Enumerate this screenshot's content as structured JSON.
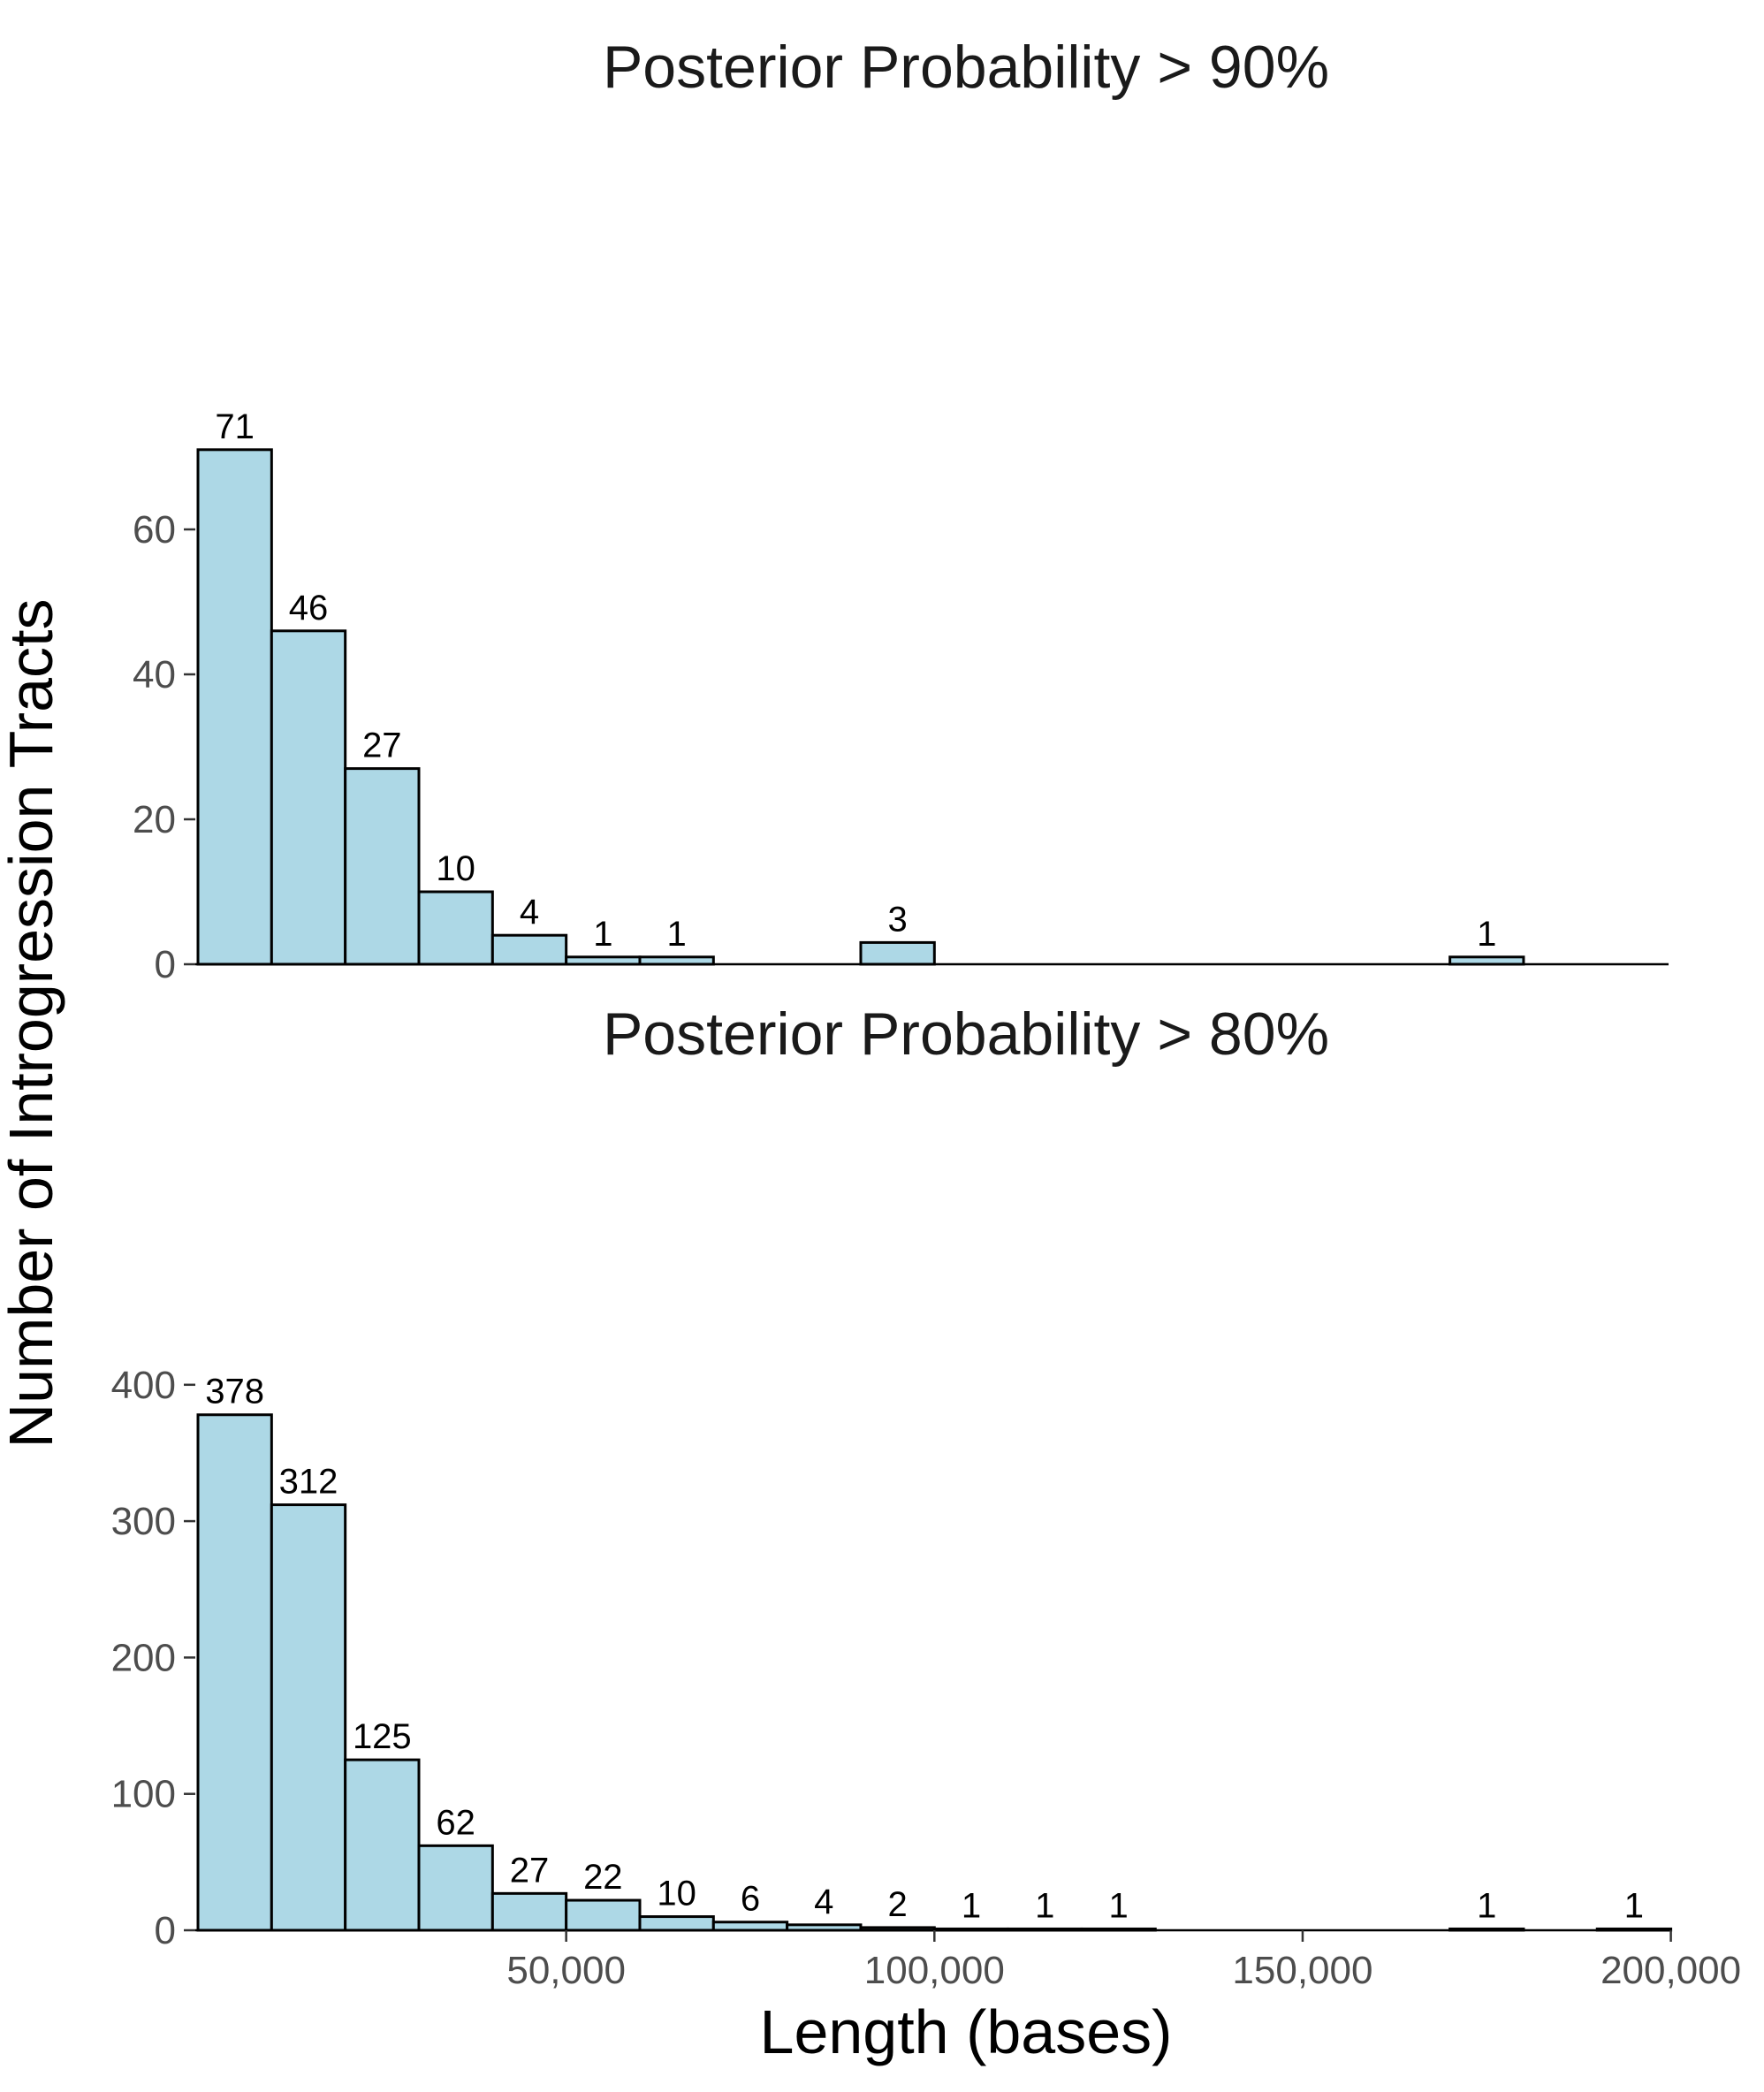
{
  "figure": {
    "xlabel": "Length (bases)",
    "ylabel": "Number of Introgression Tracts"
  },
  "colors": {
    "bar_fill": "#ADD8E6",
    "bar_outline": "#000000"
  },
  "chart_data": [
    {
      "type": "bar",
      "title": "Posterior Probability > 90%",
      "bin_width": 10000,
      "bins": [
        {
          "x": 5000,
          "value": 71,
          "label": "71"
        },
        {
          "x": 15000,
          "value": 46,
          "label": "46"
        },
        {
          "x": 25000,
          "value": 27,
          "label": "27"
        },
        {
          "x": 35000,
          "value": 10,
          "label": "10"
        },
        {
          "x": 45000,
          "value": 4,
          "label": "4"
        },
        {
          "x": 55000,
          "value": 1,
          "label": "1"
        },
        {
          "x": 65000,
          "value": 1,
          "label": "1"
        },
        {
          "x": 95000,
          "value": 3,
          "label": "3"
        },
        {
          "x": 175000,
          "value": 1,
          "label": "1"
        }
      ],
      "yticks": [
        0,
        20,
        40,
        60
      ],
      "ylim": [
        0,
        74
      ],
      "xlim": [
        0,
        200000
      ],
      "grid": false
    },
    {
      "type": "bar",
      "title": "Posterior Probability > 80%",
      "bin_width": 10000,
      "bins": [
        {
          "x": 5000,
          "value": 378,
          "label": "378"
        },
        {
          "x": 15000,
          "value": 312,
          "label": "312"
        },
        {
          "x": 25000,
          "value": 125,
          "label": "125"
        },
        {
          "x": 35000,
          "value": 62,
          "label": "62"
        },
        {
          "x": 45000,
          "value": 27,
          "label": "27"
        },
        {
          "x": 55000,
          "value": 22,
          "label": "22"
        },
        {
          "x": 65000,
          "value": 10,
          "label": "10"
        },
        {
          "x": 75000,
          "value": 6,
          "label": "6"
        },
        {
          "x": 85000,
          "value": 4,
          "label": "4"
        },
        {
          "x": 95000,
          "value": 2,
          "label": "2"
        },
        {
          "x": 105000,
          "value": 1,
          "label": "1"
        },
        {
          "x": 115000,
          "value": 1,
          "label": "1"
        },
        {
          "x": 125000,
          "value": 1,
          "label": "1"
        },
        {
          "x": 175000,
          "value": 1,
          "label": "1"
        },
        {
          "x": 195000,
          "value": 1,
          "label": "1"
        }
      ],
      "yticks": [
        0,
        100,
        200,
        300,
        400
      ],
      "xticks": [
        50000,
        100000,
        150000,
        200000
      ],
      "xtick_labels": [
        "50,000",
        "100,000",
        "150,000",
        "200,000"
      ],
      "ylim": [
        0,
        400
      ],
      "xlim": [
        0,
        200000
      ],
      "grid": false
    }
  ]
}
